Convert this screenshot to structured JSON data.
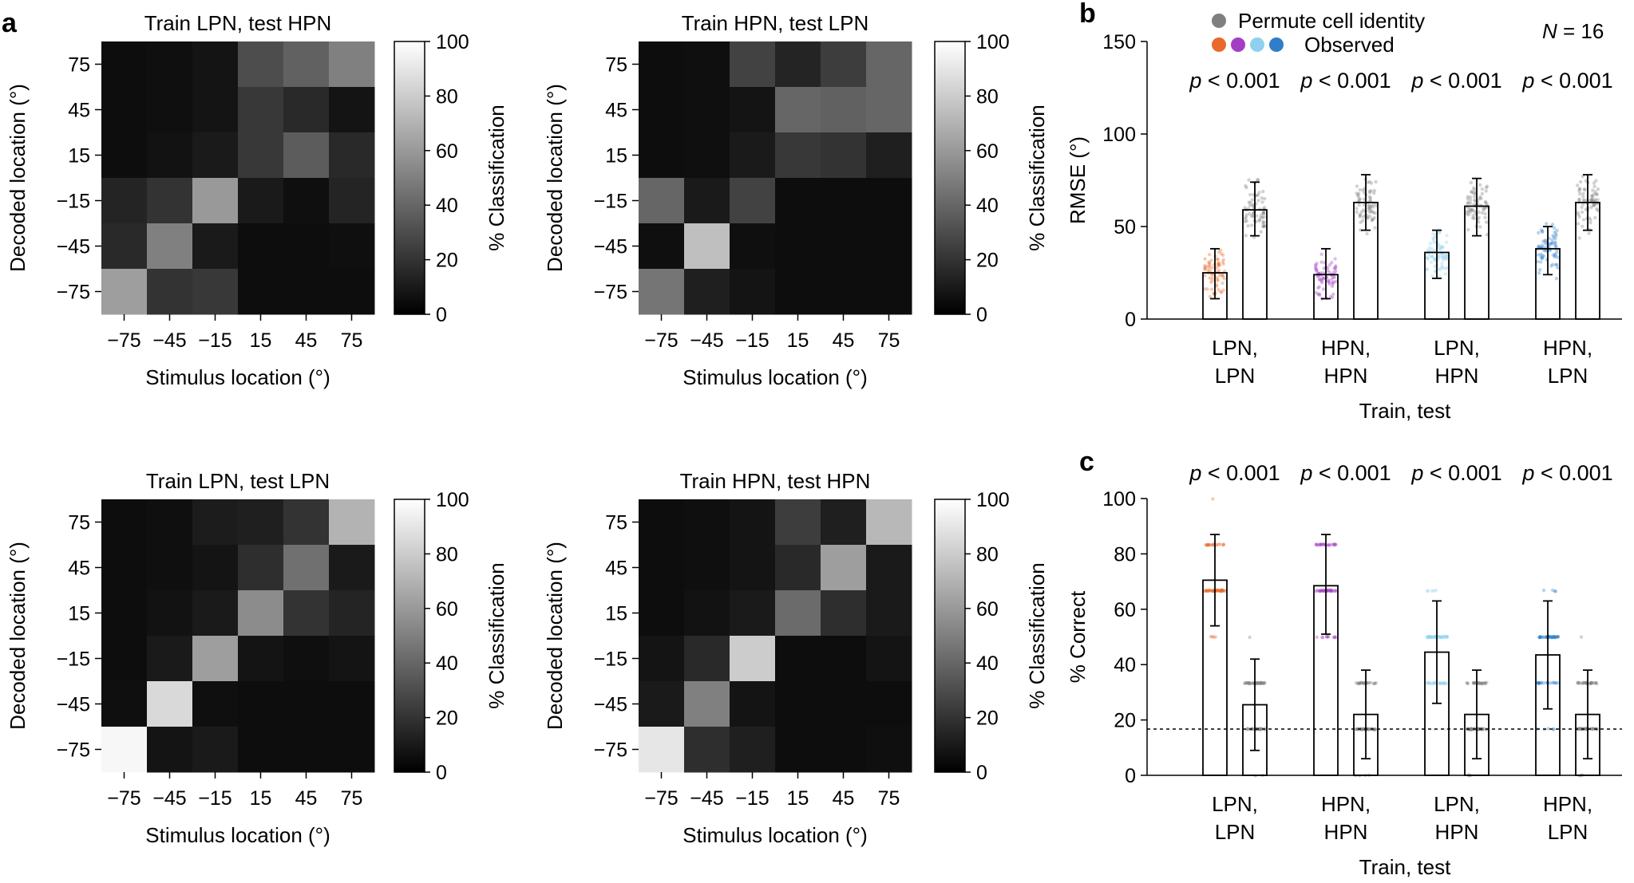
{
  "panel_labels": {
    "a": "a",
    "b": "b",
    "c": "c"
  },
  "colors": {
    "lpn_lpn": "#e8692a",
    "hpn_hpn": "#a23fc4",
    "lpn_hpn": "#8fd0ef",
    "hpn_lpn": "#2f7ec9",
    "permute": "#7f7f7f"
  },
  "chart_data": [
    {
      "type": "heatmap",
      "title": "Train LPN, test HPN",
      "xlabel": "Stimulus location (°)",
      "ylabel": "Decoded location (°)",
      "x_ticks": [
        "−75",
        "−45",
        "−15",
        "15",
        "45",
        "75"
      ],
      "y_ticks": [
        "75",
        "45",
        "15",
        "−15",
        "−45",
        "−75"
      ],
      "colorbar": {
        "label": "% Classification",
        "ticks": [
          "100",
          "80",
          "60",
          "40",
          "20",
          "0"
        ],
        "range": [
          0,
          100
        ]
      },
      "values": [
        [
          5,
          6,
          8,
          30,
          38,
          50
        ],
        [
          5,
          6,
          8,
          22,
          16,
          8
        ],
        [
          5,
          7,
          10,
          22,
          36,
          16
        ],
        [
          14,
          20,
          60,
          10,
          6,
          14
        ],
        [
          16,
          50,
          10,
          5,
          5,
          6
        ],
        [
          62,
          20,
          22,
          5,
          5,
          5
        ]
      ]
    },
    {
      "type": "heatmap",
      "title": "Train HPN, test LPN",
      "xlabel": "Stimulus location (°)",
      "ylabel": "Decoded location (°)",
      "x_ticks": [
        "−75",
        "−45",
        "−15",
        "15",
        "45",
        "75"
      ],
      "y_ticks": [
        "75",
        "45",
        "15",
        "−15",
        "−45",
        "−75"
      ],
      "colorbar": {
        "label": "% Classification",
        "ticks": [
          "100",
          "80",
          "60",
          "40",
          "20",
          "0"
        ],
        "range": [
          0,
          100
        ]
      },
      "values": [
        [
          5,
          6,
          26,
          14,
          24,
          40
        ],
        [
          5,
          6,
          8,
          40,
          38,
          40
        ],
        [
          5,
          6,
          10,
          22,
          20,
          12
        ],
        [
          40,
          10,
          26,
          5,
          5,
          5
        ],
        [
          6,
          75,
          6,
          5,
          5,
          5
        ],
        [
          46,
          12,
          8,
          5,
          5,
          5
        ]
      ]
    },
    {
      "type": "heatmap",
      "title": "Train LPN, test LPN",
      "xlabel": "Stimulus location (°)",
      "ylabel": "Decoded location (°)",
      "x_ticks": [
        "−75",
        "−45",
        "−15",
        "15",
        "45",
        "75"
      ],
      "y_ticks": [
        "75",
        "45",
        "15",
        "−15",
        "−45",
        "−75"
      ],
      "colorbar": {
        "label": "% Classification",
        "ticks": [
          "100",
          "80",
          "60",
          "40",
          "20",
          "0"
        ],
        "range": [
          0,
          100
        ]
      },
      "values": [
        [
          5,
          6,
          11,
          12,
          20,
          70
        ],
        [
          5,
          6,
          8,
          18,
          44,
          10
        ],
        [
          5,
          7,
          10,
          55,
          20,
          14
        ],
        [
          5,
          10,
          62,
          8,
          6,
          8
        ],
        [
          6,
          85,
          6,
          5,
          5,
          5
        ],
        [
          97,
          8,
          10,
          5,
          5,
          5
        ]
      ]
    },
    {
      "type": "heatmap",
      "title": "Train HPN, test HPN",
      "xlabel": "Stimulus location (°)",
      "ylabel": "Decoded location (°)",
      "x_ticks": [
        "−75",
        "−45",
        "−15",
        "15",
        "45",
        "75"
      ],
      "y_ticks": [
        "75",
        "45",
        "15",
        "−15",
        "−45",
        "−75"
      ],
      "colorbar": {
        "label": "% Classification",
        "ticks": [
          "100",
          "80",
          "60",
          "40",
          "20",
          "0"
        ],
        "range": [
          0,
          100
        ]
      },
      "values": [
        [
          5,
          6,
          8,
          24,
          12,
          72
        ],
        [
          5,
          6,
          8,
          16,
          62,
          10
        ],
        [
          5,
          7,
          10,
          42,
          18,
          10
        ],
        [
          8,
          16,
          80,
          5,
          5,
          8
        ],
        [
          10,
          50,
          8,
          5,
          5,
          5
        ],
        [
          90,
          18,
          12,
          5,
          5,
          6
        ]
      ]
    },
    {
      "type": "bar",
      "panel": "b",
      "ylabel": "RMSE (°)",
      "xlabel": "Train, test",
      "ylim": [
        0,
        150
      ],
      "y_ticks": [
        "0",
        "50",
        "100",
        "150"
      ],
      "categories": [
        "LPN,\nLPN",
        "HPN,\nHPN",
        "LPN,\nHPN",
        "HPN,\nLPN"
      ],
      "category_lines": [
        [
          "LPN,",
          "LPN"
        ],
        [
          "HPN,",
          "HPN"
        ],
        [
          "LPN,",
          "HPN"
        ],
        [
          "HPN,",
          "LPN"
        ]
      ],
      "legend": {
        "permute": "Permute cell identity",
        "observed": "Observed"
      },
      "n_text": "N = 16",
      "n_label": "N",
      "n_value": "= 16",
      "p_values": [
        "p < 0.001",
        "p < 0.001",
        "p < 0.001",
        "p < 0.001"
      ],
      "p_prefix": "p",
      "p_rest": "< 0.001",
      "series": [
        {
          "name": "Observed",
          "values": [
            25,
            24,
            36,
            38
          ],
          "err_low": [
            11,
            11,
            22,
            24
          ],
          "err_high": [
            38,
            38,
            48,
            50
          ]
        },
        {
          "name": "Permute cell identity",
          "values": [
            59,
            63,
            61,
            63
          ],
          "err_low": [
            45,
            48,
            45,
            48
          ],
          "err_high": [
            74,
            78,
            76,
            78
          ]
        }
      ]
    },
    {
      "type": "bar",
      "panel": "c",
      "ylabel": "% Correct",
      "xlabel": "Train, test",
      "ylim": [
        0,
        100
      ],
      "y_ticks": [
        "0",
        "20",
        "40",
        "60",
        "80",
        "100"
      ],
      "chance_level": 16.7,
      "categories": [
        "LPN,\nLPN",
        "HPN,\nHPN",
        "LPN,\nHPN",
        "HPN,\nLPN"
      ],
      "category_lines": [
        [
          "LPN,",
          "LPN"
        ],
        [
          "HPN,",
          "HPN"
        ],
        [
          "LPN,",
          "HPN"
        ],
        [
          "HPN,",
          "LPN"
        ]
      ],
      "p_values": [
        "p < 0.001",
        "p < 0.001",
        "p < 0.001",
        "p < 0.001"
      ],
      "p_prefix": "p",
      "p_rest": "< 0.001",
      "series": [
        {
          "name": "Observed",
          "values": [
            70.5,
            68.5,
            44.5,
            43.5
          ],
          "err_low": [
            54,
            51,
            26,
            24
          ],
          "err_high": [
            87,
            87,
            63,
            63
          ]
        },
        {
          "name": "Permute cell identity",
          "values": [
            25.5,
            22,
            22,
            22
          ],
          "err_low": [
            9,
            6,
            6,
            6
          ],
          "err_high": [
            42,
            38,
            38,
            38
          ]
        }
      ]
    }
  ]
}
